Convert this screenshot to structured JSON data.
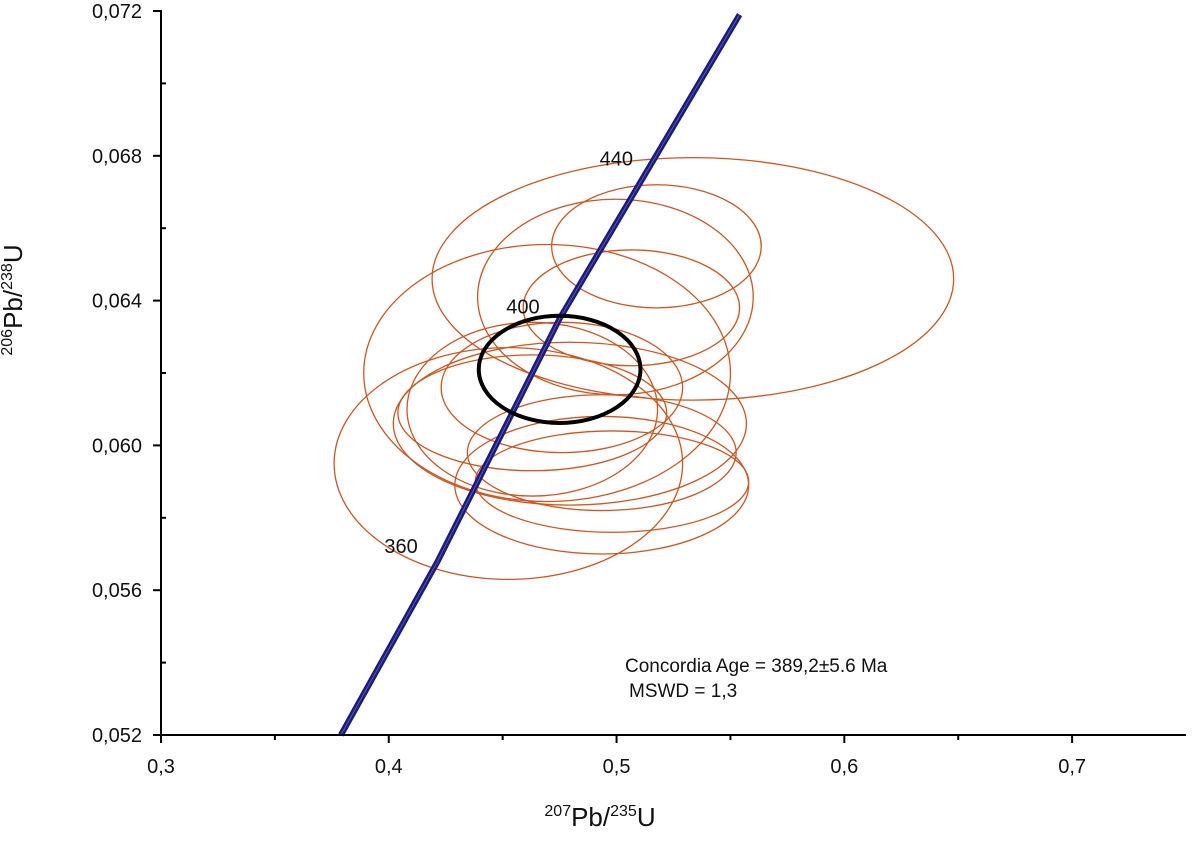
{
  "chart_data": {
    "type": "scatter",
    "title": "",
    "xlabel": {
      "sup1": "207",
      "base1": "Pb/",
      "sup2": "235",
      "base2": "U"
    },
    "ylabel": {
      "sup1": "206",
      "base1": "Pb/",
      "sup2": "238",
      "base2": "U"
    },
    "xlim": [
      0.3,
      0.75
    ],
    "ylim": [
      0.052,
      0.072
    ],
    "x_ticks": [
      {
        "value": 0.3,
        "label": "0,3"
      },
      {
        "value": 0.4,
        "label": "0,4"
      },
      {
        "value": 0.5,
        "label": "0,5"
      },
      {
        "value": 0.6,
        "label": "0,6"
      },
      {
        "value": 0.7,
        "label": "0,7"
      }
    ],
    "x_minor_ticks": [
      0.35,
      0.45,
      0.55,
      0.65
    ],
    "y_ticks": [
      {
        "value": 0.052,
        "label": "0,052"
      },
      {
        "value": 0.056,
        "label": "0,056"
      },
      {
        "value": 0.06,
        "label": "0,060"
      },
      {
        "value": 0.064,
        "label": "0,064"
      },
      {
        "value": 0.068,
        "label": "0,068"
      },
      {
        "value": 0.072,
        "label": "0,072"
      }
    ],
    "y_minor_ticks": [
      0.054,
      0.058,
      0.062,
      0.066,
      0.07
    ],
    "grid": false,
    "concordia": {
      "color": "#1a1a80",
      "points": [
        {
          "x": 0.379,
          "y": 0.052
        },
        {
          "x": 0.4215,
          "y": 0.0568
        },
        {
          "x": 0.475,
          "y": 0.0635
        },
        {
          "x": 0.554,
          "y": 0.0719
        }
      ],
      "age_labels": [
        {
          "text": "360",
          "x": 0.4215,
          "y": 0.0568
        },
        {
          "text": "400",
          "x": 0.475,
          "y": 0.0635
        },
        {
          "text": "440",
          "x": 0.516,
          "y": 0.0677
        }
      ]
    },
    "error_ellipses": {
      "color": "#d4541c",
      "items": [
        {
          "cx": 0.5335,
          "cy": 0.0646,
          "rx": 0.1145,
          "ry": 0.00335
        },
        {
          "cx": 0.4695,
          "cy": 0.062,
          "rx": 0.0805,
          "ry": 0.00355
        },
        {
          "cx": 0.4995,
          "cy": 0.0641,
          "rx": 0.0605,
          "ry": 0.0027
        },
        {
          "cx": 0.5175,
          "cy": 0.0655,
          "rx": 0.046,
          "ry": 0.0017
        },
        {
          "cx": 0.5065,
          "cy": 0.0638,
          "rx": 0.0475,
          "ry": 0.0016
        },
        {
          "cx": 0.4795,
          "cy": 0.0606,
          "rx": 0.0775,
          "ry": 0.00225
        },
        {
          "cx": 0.4525,
          "cy": 0.0595,
          "rx": 0.0765,
          "ry": 0.0032
        },
        {
          "cx": 0.463,
          "cy": 0.061,
          "rx": 0.055,
          "ry": 0.0024
        },
        {
          "cx": 0.476,
          "cy": 0.0616,
          "rx": 0.053,
          "ry": 0.0018
        },
        {
          "cx": 0.463,
          "cy": 0.0609,
          "rx": 0.059,
          "ry": 0.0016
        },
        {
          "cx": 0.4935,
          "cy": 0.0589,
          "rx": 0.0645,
          "ry": 0.0019
        },
        {
          "cx": 0.498,
          "cy": 0.059,
          "rx": 0.06,
          "ry": 0.0014
        },
        {
          "cx": 0.4935,
          "cy": 0.0598,
          "rx": 0.059,
          "ry": 0.0016
        }
      ]
    },
    "concordia_age_ellipse": {
      "cx": 0.475,
      "cy": 0.0621,
      "rx": 0.0355,
      "ry": 0.00148,
      "color": "#000000"
    },
    "annotations": [
      "Concordia Age = 389,2±5.6 Ma",
      "MSWD = 1,3"
    ]
  }
}
